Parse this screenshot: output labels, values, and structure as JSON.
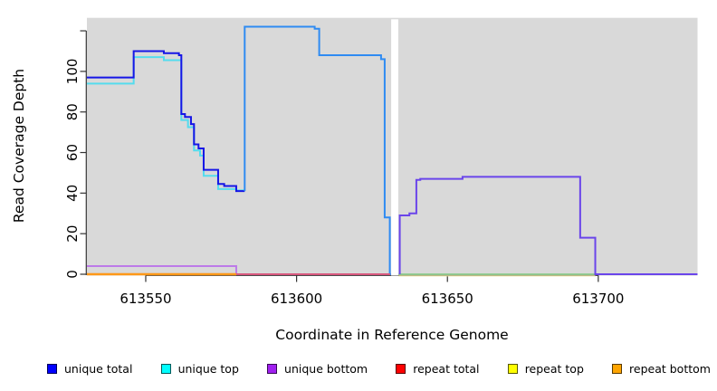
{
  "chart_data": {
    "type": "line",
    "title": "",
    "xlabel": "Coordinate in Reference Genome",
    "ylabel": "Read Coverage Depth",
    "x_range": [
      613530.5,
      613732.9
    ],
    "y_range": [
      0,
      126.4
    ],
    "x_ticks": [
      {
        "value": 613550,
        "label": "613550"
      },
      {
        "value": 613600,
        "label": "613600"
      },
      {
        "value": 613650,
        "label": "613650"
      },
      {
        "value": 613700,
        "label": "613700"
      }
    ],
    "y_ticks": [
      {
        "value": 0,
        "label": "0"
      },
      {
        "value": 20,
        "label": "20"
      },
      {
        "value": 40,
        "label": "40"
      },
      {
        "value": 60,
        "label": "60"
      },
      {
        "value": 80,
        "label": "80"
      },
      {
        "value": 100,
        "label": "100"
      },
      {
        "value": 120,
        "label": ""
      }
    ],
    "plot_bg": "#d9d9d9",
    "axis_color": "#333333",
    "grid": "off",
    "no_data_gap": {
      "x_from": 613631.35,
      "x_to": 613633.7
    },
    "series": [
      {
        "name": "unique top (left of gap)",
        "color": "#55dcee",
        "width": 2,
        "steps": [
          [
            613530.5,
            94
          ],
          [
            613546,
            107
          ],
          [
            613556,
            105.5
          ],
          [
            613561.8,
            76
          ],
          [
            613564,
            72.5
          ],
          [
            613566,
            61
          ],
          [
            613568,
            58.5
          ],
          [
            613569.2,
            48.5
          ],
          [
            613574,
            42
          ],
          [
            613580,
            41.3
          ]
        ],
        "end": 613582.8
      },
      {
        "name": "unique total (left of gap)",
        "color": "#1616e6",
        "width": 2,
        "steps": [
          [
            613530.5,
            97
          ],
          [
            613546,
            110
          ],
          [
            613556,
            109
          ],
          [
            613561,
            108
          ],
          [
            613561.8,
            79
          ],
          [
            613563,
            77.5
          ],
          [
            613565,
            74
          ],
          [
            613566,
            64
          ],
          [
            613567.5,
            62
          ],
          [
            613569.2,
            51.5
          ],
          [
            613574,
            44.5
          ],
          [
            613576,
            43.5
          ],
          [
            613580,
            41
          ]
        ],
        "end": 613582.8
      },
      {
        "name": "unique total = unique top (merged plateau)",
        "color": "#2f8bf2",
        "width": 2,
        "steps": [
          [
            613582.8,
            41
          ],
          [
            613582.8,
            122
          ],
          [
            613606,
            121
          ],
          [
            613607.5,
            108
          ],
          [
            613628,
            106
          ],
          [
            613629.2,
            28
          ],
          [
            613630.9,
            0
          ]
        ],
        "end": 613631.3
      },
      {
        "name": "unique bottom (left of gap)",
        "color": "#bd7ae8",
        "width": 2,
        "steps": [
          [
            613530.5,
            4
          ],
          [
            613580,
            0
          ]
        ],
        "end": 613580.3
      },
      {
        "name": "repeat total+top+bottom at 0 (left)",
        "color": "#ff9818",
        "width": 2.5,
        "steps": [
          [
            613530.5,
            0
          ]
        ],
        "end": 613580
      },
      {
        "name": "repeat + unique bottom at 0 (mid)",
        "color": "#d8587e",
        "width": 2,
        "steps": [
          [
            613580,
            0
          ]
        ],
        "end": 613631
      },
      {
        "name": "repeat top at 0 (right, pale)",
        "color": "#efe6a0",
        "width": 1.2,
        "steps": [
          [
            613633.8,
            -0.8
          ]
        ],
        "end": 613699
      },
      {
        "name": "unique top + repeat top at 0 (right)",
        "color": "#8ccc8c",
        "width": 1.8,
        "steps": [
          [
            613633.8,
            0
          ]
        ],
        "end": 613699
      },
      {
        "name": "unique bottom (right of gap)",
        "color": "#6a45ea",
        "width": 2,
        "steps": [
          [
            613634.2,
            0
          ],
          [
            613634.2,
            29
          ],
          [
            613637.4,
            30
          ],
          [
            613639.7,
            46.5
          ],
          [
            613641,
            47
          ],
          [
            613655,
            48
          ],
          [
            613694,
            18
          ],
          [
            613699,
            0
          ]
        ],
        "end": 613732.9
      }
    ],
    "legend": [
      {
        "label": "unique total",
        "color": "#0000ff"
      },
      {
        "label": "unique top",
        "color": "#00ffff"
      },
      {
        "label": "unique bottom",
        "color": "#a020f0"
      },
      {
        "label": "repeat total",
        "color": "#ff0000"
      },
      {
        "label": "repeat top",
        "color": "#ffff00"
      },
      {
        "label": "repeat bottom",
        "color": "#ffa500"
      }
    ]
  }
}
